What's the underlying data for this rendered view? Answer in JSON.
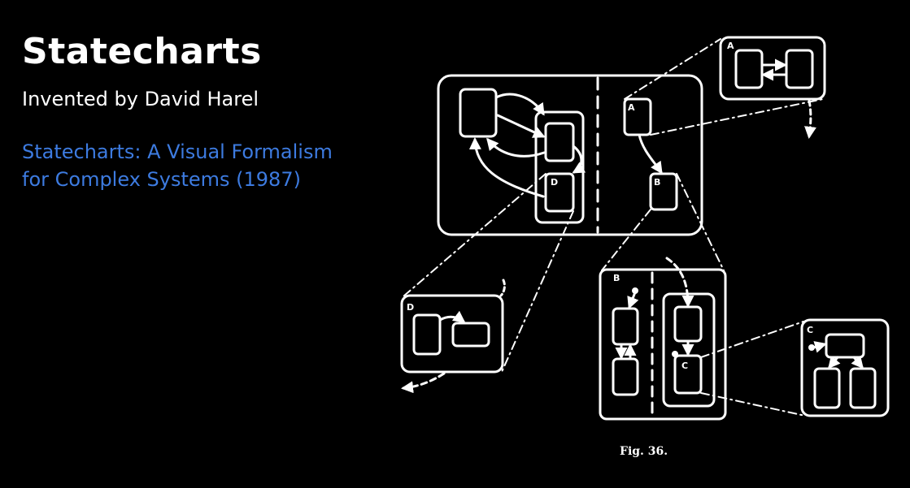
{
  "slide": {
    "title": "Statecharts",
    "subtitle": "Invented by David Harel",
    "link_line1": "Statecharts: A Visual Formalism",
    "link_line2": "for Complex Systems (1987)",
    "accent": "#3d7be0"
  },
  "figure": {
    "labels": {
      "a_main": "A",
      "b_main": "B",
      "d_main": "D",
      "a_zoom": "A",
      "d_zoom": "D",
      "b_zoom": "B",
      "c_inner": "C",
      "c_zoom": "C"
    },
    "caption": "Fig. 36."
  }
}
